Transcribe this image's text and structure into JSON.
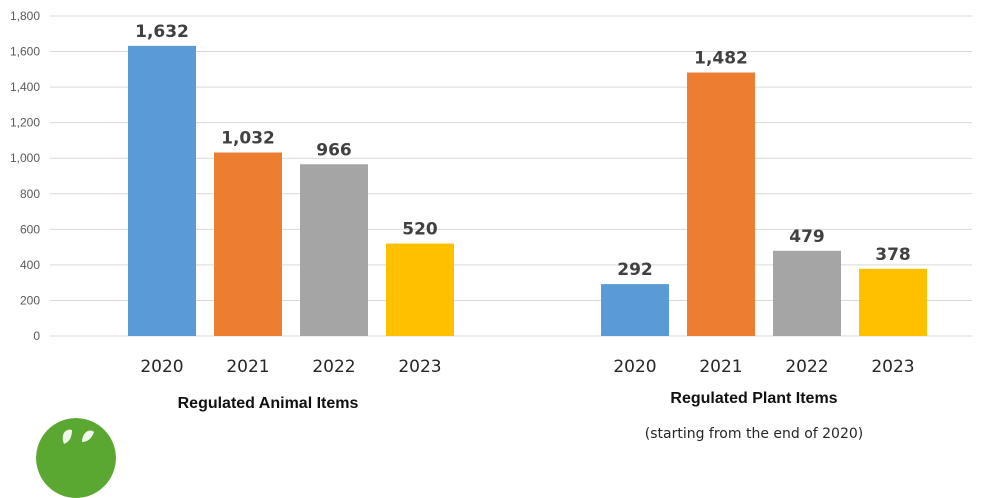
{
  "chart_data": {
    "type": "bar",
    "ylim": [
      0,
      1800
    ],
    "yticks": [
      0,
      200,
      400,
      600,
      800,
      1000,
      1200,
      1400,
      1600,
      1800
    ],
    "ytick_labels": [
      "0",
      "200",
      "400",
      "600",
      "800",
      "1,000",
      "1,200",
      "1,400",
      "1,600",
      "1,800"
    ],
    "grid": true,
    "colors": {
      "2020": "#5B9BD5",
      "2021": "#ED7D31",
      "2022": "#A5A5A5",
      "2023": "#FFC000"
    },
    "groups": [
      {
        "title": "Regulated Animal Items",
        "note": "",
        "categories": [
          "2020",
          "2021",
          "2022",
          "2023"
        ],
        "values": [
          1632,
          1032,
          966,
          520
        ],
        "labels": [
          "1,632",
          "1,032",
          "966",
          "520"
        ]
      },
      {
        "title": "Regulated Plant Items",
        "note": "(starting from the end of 2020)",
        "categories": [
          "2020",
          "2021",
          "2022",
          "2023"
        ],
        "values": [
          292,
          1482,
          479,
          378
        ],
        "labels": [
          "292",
          "1,482",
          "479",
          "378"
        ]
      }
    ]
  },
  "logo": {
    "icon": "leaf-logo-icon",
    "color": "#5AA832"
  }
}
